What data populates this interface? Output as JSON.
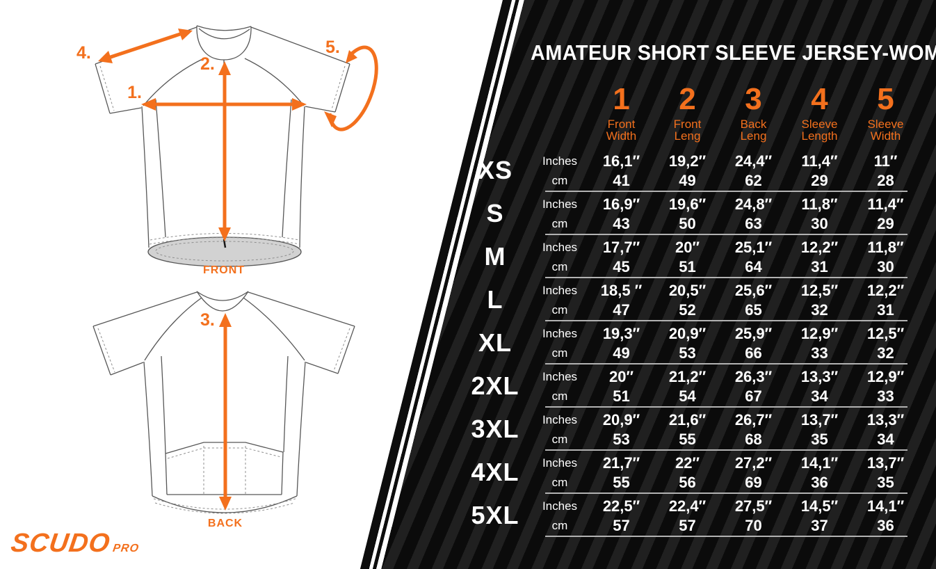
{
  "colors": {
    "accent": "#f3701d",
    "background_black": "#0b0b0b",
    "stripe_gray": "#1d1d1d",
    "separator_gray": "#b2b2b2",
    "hem_gray": "#d2d2d2"
  },
  "brand": {
    "logo_main": "SCUDO",
    "logo_sub": "PRO"
  },
  "diagram": {
    "front_label": "FRONT",
    "back_label": "BACK",
    "markers": {
      "m1": "1.",
      "m2": "2.",
      "m3": "3.",
      "m4": "4.",
      "m5": "5."
    }
  },
  "table": {
    "title": "AMATEUR SHORT SLEEVE JERSEY-WOMAN",
    "unit_inches": "Inches",
    "unit_cm": "cm",
    "columns": [
      {
        "num": "1",
        "label_line1": "Front",
        "label_line2": "Width"
      },
      {
        "num": "2",
        "label_line1": "Front",
        "label_line2": "Leng"
      },
      {
        "num": "3",
        "label_line1": "Back",
        "label_line2": "Leng"
      },
      {
        "num": "4",
        "label_line1": "Sleeve",
        "label_line2": "Length"
      },
      {
        "num": "5",
        "label_line1": "Sleeve",
        "label_line2": "Width"
      }
    ],
    "rows": [
      {
        "size": "XS",
        "inches": [
          "16,1″",
          "19,2″",
          "24,4″",
          "11,4″",
          "11″"
        ],
        "cm": [
          "41",
          "49",
          "62",
          "29",
          "28"
        ]
      },
      {
        "size": "S",
        "inches": [
          "16,9″",
          "19,6″",
          "24,8″",
          "11,8″",
          "11,4″"
        ],
        "cm": [
          "43",
          "50",
          "63",
          "30",
          "29"
        ]
      },
      {
        "size": "M",
        "inches": [
          "17,7″",
          "20″",
          "25,1″",
          "12,2″",
          "11,8″"
        ],
        "cm": [
          "45",
          "51",
          "64",
          "31",
          "30"
        ]
      },
      {
        "size": "L",
        "inches": [
          "18,5 ″",
          "20,5″",
          "25,6″",
          "12,5″",
          "12,2″"
        ],
        "cm": [
          "47",
          "52",
          "65",
          "32",
          "31"
        ]
      },
      {
        "size": "XL",
        "inches": [
          "19,3″",
          "20,9″",
          "25,9″",
          "12,9″",
          "12,5″"
        ],
        "cm": [
          "49",
          "53",
          "66",
          "33",
          "32"
        ]
      },
      {
        "size": "2XL",
        "inches": [
          "20″",
          "21,2″",
          "26,3″",
          "13,3″",
          "12,9″"
        ],
        "cm": [
          "51",
          "54",
          "67",
          "34",
          "33"
        ]
      },
      {
        "size": "3XL",
        "inches": [
          "20,9″",
          "21,6″",
          "26,7″",
          "13,7″",
          "13,3″"
        ],
        "cm": [
          "53",
          "55",
          "68",
          "35",
          "34"
        ]
      },
      {
        "size": "4XL",
        "inches": [
          "21,7″",
          "22″",
          "27,2″",
          "14,1″",
          "13,7″"
        ],
        "cm": [
          "55",
          "56",
          "69",
          "36",
          "35"
        ]
      },
      {
        "size": "5XL",
        "inches": [
          "22,5″",
          "22,4″",
          "27,5″",
          "14,5″",
          "14,1″"
        ],
        "cm": [
          "57",
          "57",
          "70",
          "37",
          "36"
        ]
      }
    ]
  }
}
